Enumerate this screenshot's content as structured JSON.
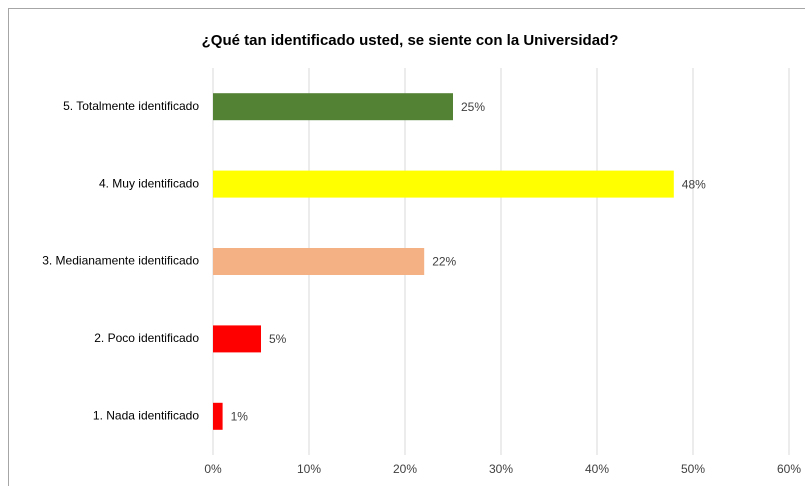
{
  "chart_data": {
    "type": "barh",
    "title": "¿Qué tan identificado usted, se siente con la Universidad?",
    "categories": [
      "5. Totalmente identificado",
      "4. Muy identificado",
      "3. Medianamente identificado",
      "2. Poco identificado",
      "1. Nada identificado"
    ],
    "values": [
      25,
      48,
      22,
      5,
      1
    ],
    "value_labels": [
      "25%",
      "48%",
      "22%",
      "5%",
      "1%"
    ],
    "colors": [
      "#548235",
      "#ffff00",
      "#f4b183",
      "#ff0000",
      "#ff0000"
    ],
    "xlim": [
      0,
      60
    ],
    "xticks": [
      {
        "value": 0,
        "label": "0%"
      },
      {
        "value": 10,
        "label": "10%"
      },
      {
        "value": 20,
        "label": "20%"
      },
      {
        "value": 30,
        "label": "30%"
      },
      {
        "value": 40,
        "label": "40%"
      },
      {
        "value": 50,
        "label": "50%"
      },
      {
        "value": 60,
        "label": "60%"
      }
    ],
    "grid": true
  }
}
